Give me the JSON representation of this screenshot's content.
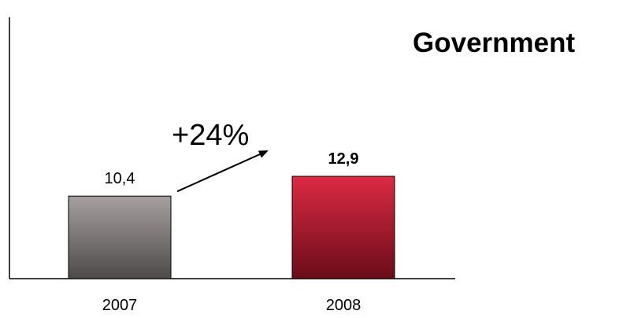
{
  "chart_data": {
    "type": "bar",
    "title": "Government",
    "categories": [
      "2007",
      "2008"
    ],
    "values": [
      10.4,
      12.9
    ],
    "value_labels": [
      "10,4",
      "12,9"
    ],
    "highlighted_index": 1,
    "ylim": [
      0,
      30
    ],
    "grid": false,
    "legend": "none",
    "annotations": [
      {
        "text": "+24%",
        "from": "2007",
        "to": "2008",
        "type": "growth-arrow"
      }
    ],
    "colors": {
      "bar_2007_top": "#a8a0a0",
      "bar_2007_bottom": "#4e4a4a",
      "bar_2008_top": "#dc2a44",
      "bar_2008_bottom": "#6a0c18",
      "axis": "#000000"
    }
  }
}
